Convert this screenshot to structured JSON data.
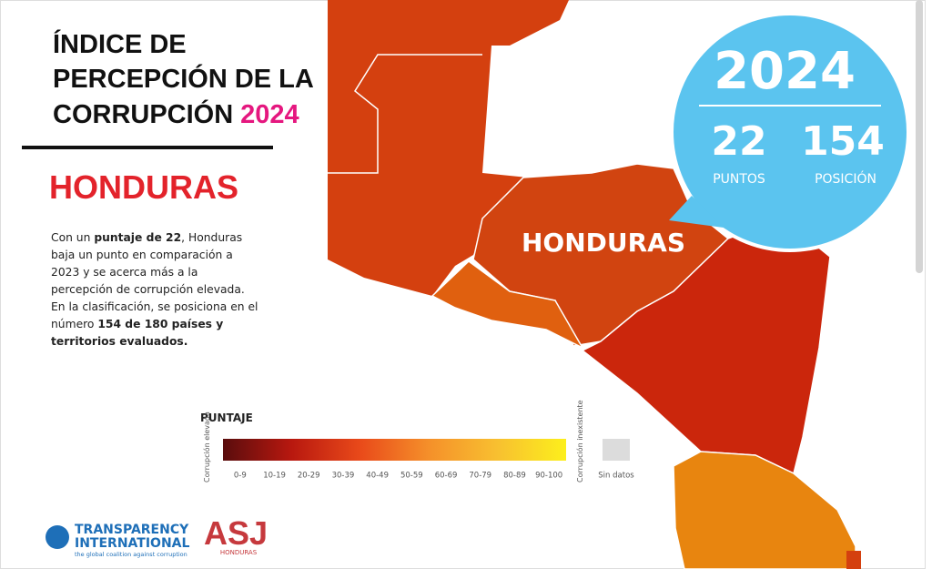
{
  "header": {
    "title_lines": [
      "ÍNDICE DE",
      "PERCEPCIÓN DE LA",
      "CORRUPCIÓN"
    ],
    "year": "2024"
  },
  "country": "HONDURAS",
  "description": [
    {
      "text": "Con un ",
      "bold": false
    },
    {
      "text": "puntaje de 22",
      "bold": true
    },
    {
      "text": ", Honduras baja un punto en comparación a 2023 y se acerca más a la percepción de corrupción elevada. En la clasificación, se posiciona en el número ",
      "bold": false
    },
    {
      "text": "154 de 180 países y territorios evaluados.",
      "bold": true
    }
  ],
  "map_label": "HONDURAS",
  "badge": {
    "year": "2024",
    "score": "22",
    "score_label": "PUNTOS",
    "rank": "154",
    "rank_label": "POSICIÓN"
  },
  "legend": {
    "title": "PUNTAJE",
    "low_label": "Corrupción elevada",
    "high_label": "Corrupción inexistente",
    "ranges": [
      "0-9",
      "10-19",
      "20-29",
      "30-39",
      "40-49",
      "50-59",
      "60-69",
      "70-79",
      "80-89",
      "90-100"
    ],
    "no_data": "Sin datos"
  },
  "logos": {
    "ti_line1": "TRANSPARENCY",
    "ti_line2": "INTERNATIONAL",
    "ti_tagline": "the global coalition against corruption",
    "asj": "ASJ",
    "asj_sub": "HONDURAS"
  }
}
